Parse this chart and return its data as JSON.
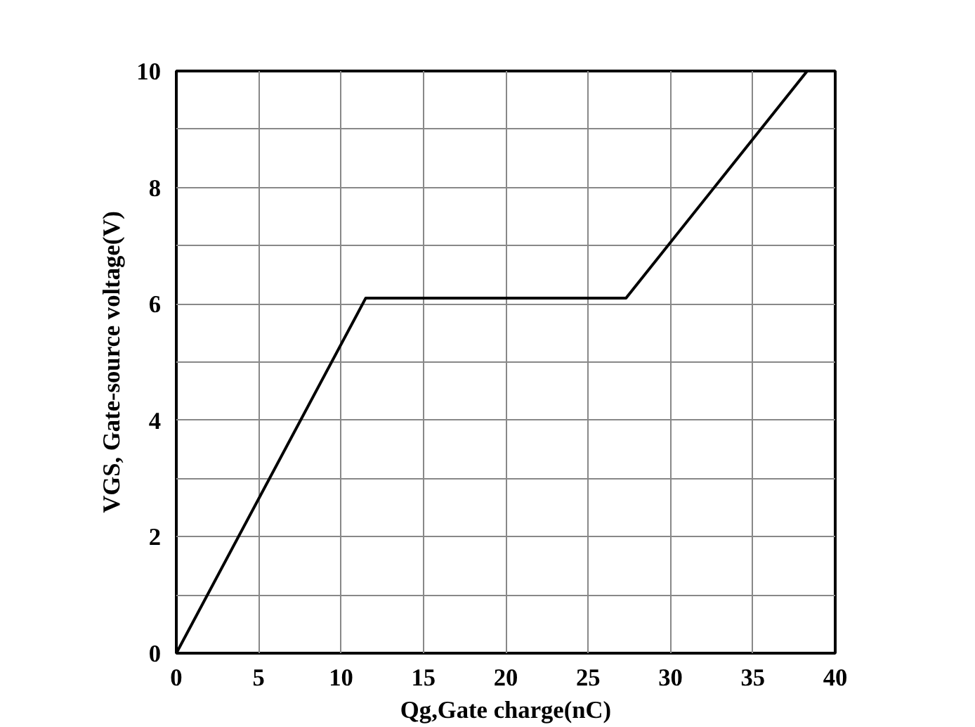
{
  "chart_data": {
    "type": "line",
    "xlabel": "Qg,Gate charge(nC)",
    "ylabel": "VGS, Gate-source voltage(V)",
    "x": [
      0,
      11.5,
      27.3,
      38.3
    ],
    "series": [
      {
        "color": "#000000",
        "values": [
          0,
          6.1,
          6.1,
          10
        ]
      }
    ],
    "xlim": [
      0,
      40
    ],
    "ylim": [
      0,
      10
    ],
    "xticks": [
      0,
      5,
      10,
      15,
      20,
      25,
      30,
      35,
      40
    ],
    "yticks": [
      0,
      {
        "value": 1,
        "label": null
      },
      2,
      {
        "value": 3,
        "label": null
      },
      4,
      {
        "value": 5,
        "label": null
      },
      6,
      {
        "value": 7,
        "label": null
      },
      8,
      {
        "value": 9,
        "label": null
      },
      10
    ],
    "grid": true,
    "marker": "none",
    "line_style": "solid"
  }
}
